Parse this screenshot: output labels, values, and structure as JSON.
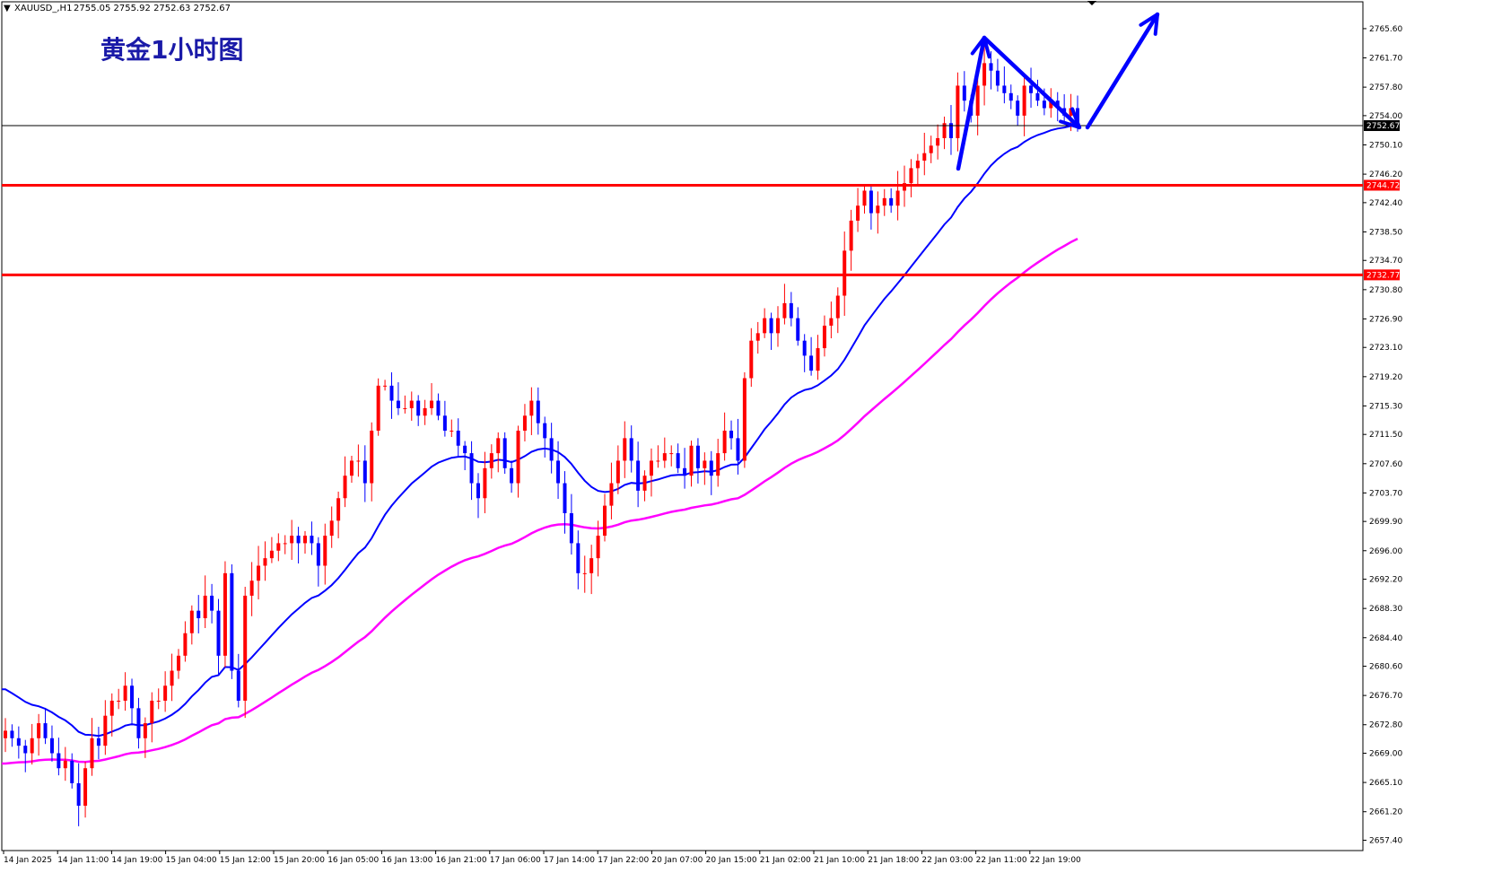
{
  "header": {
    "symbol": "XAUUSD_,H1",
    "ohlc": "2755.05 2755.92 2752.63 2752.67",
    "overlay_title": "黄金1小时图"
  },
  "colors": {
    "bull": "#ff0000",
    "bear": "#0000ff",
    "ma_fast": "#0000ff",
    "ma_slow": "#ff00ff",
    "level": "#ff0000",
    "arrow": "#0000ff"
  },
  "chart_data": {
    "type": "candlestick",
    "title": "黄金1小时图",
    "symbol": "XAUUSD",
    "timeframe": "H1",
    "ylim": [
      2656.5,
      2768.7
    ],
    "y_ticks": [
      "2765.60",
      "2761.70",
      "2757.80",
      "2754.00",
      "2750.10",
      "2746.20",
      "2742.40",
      "2738.50",
      "2734.70",
      "2730.80",
      "2726.90",
      "2723.10",
      "2719.20",
      "2715.30",
      "2711.50",
      "2707.60",
      "2703.70",
      "2699.90",
      "2696.00",
      "2692.20",
      "2688.30",
      "2684.40",
      "2680.60",
      "2676.70",
      "2672.80",
      "2669.00",
      "2665.10",
      "2661.20",
      "2657.40"
    ],
    "x_ticks": [
      "14 Jan 2025",
      "14 Jan 11:00",
      "14 Jan 19:00",
      "15 Jan 04:00",
      "15 Jan 12:00",
      "15 Jan 20:00",
      "16 Jan 05:00",
      "16 Jan 13:00",
      "16 Jan 21:00",
      "17 Jan 06:00",
      "17 Jan 14:00",
      "17 Jan 22:00",
      "20 Jan 07:00",
      "20 Jan 15:00",
      "21 Jan 02:00",
      "21 Jan 10:00",
      "21 Jan 18:00",
      "22 Jan 03:00",
      "22 Jan 11:00",
      "22 Jan 19:00"
    ],
    "current_price": "2752.67",
    "levels": [
      {
        "label": "2744.72",
        "value": 2744.72
      },
      {
        "label": "2732.77",
        "value": 2732.77
      }
    ],
    "closes": [
      2672,
      2671,
      2670,
      2669,
      2671,
      2673,
      2671,
      2669,
      2667,
      2668,
      2665,
      2662,
      2667,
      2671,
      2670,
      2674,
      2676,
      2676,
      2678,
      2675,
      2671,
      2673,
      2676,
      2676,
      2678,
      2680,
      2682,
      2685,
      2688,
      2687,
      2690,
      2688,
      2682,
      2693,
      2680,
      2676,
      2690,
      2692,
      2694,
      2695,
      2696,
      2697,
      2697,
      2698,
      2697,
      2698,
      2697,
      2694,
      2698,
      2700,
      2703,
      2706,
      2708,
      2708,
      2705,
      2712,
      2718,
      2718,
      2716,
      2715,
      2715,
      2716,
      2714,
      2715,
      2716,
      2714,
      2712,
      2712,
      2710,
      2709,
      2705,
      2703,
      2707,
      2709,
      2711,
      2707,
      2705,
      2712,
      2714,
      2716,
      2713,
      2711,
      2708,
      2705,
      2701,
      2697,
      2693,
      2693,
      2695,
      2698,
      2702,
      2705,
      2708,
      2711,
      2708,
      2704,
      2706,
      2708,
      2708,
      2709,
      2709,
      2707,
      2706,
      2710,
      2707,
      2708,
      2706,
      2709,
      2712,
      2711,
      2708,
      2719,
      2724,
      2725,
      2727,
      2725,
      2727,
      2729,
      2727,
      2724,
      2722,
      2720,
      2723,
      2726,
      2727,
      2730,
      2736,
      2740,
      2742,
      2744,
      2741,
      2742,
      2743,
      2742,
      2744,
      2745,
      2747,
      2748,
      2749,
      2750,
      2751,
      2753,
      2751,
      2758,
      2756,
      2754,
      2758,
      2761,
      2760,
      2758,
      2757,
      2756,
      2754,
      2758,
      2757,
      2756,
      2755,
      2756,
      2755,
      2754,
      2755,
      2752.67
    ],
    "ma_fast": {
      "name": "",
      "start": 2678.0
    },
    "ma_slow": {
      "name": "",
      "start": 2667.5
    },
    "annotations": [
      "arrow up-leg",
      "arrow pullback",
      "arrow projected rise"
    ]
  }
}
